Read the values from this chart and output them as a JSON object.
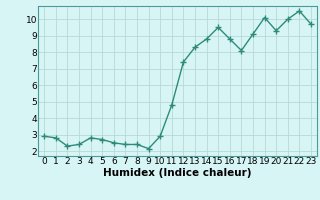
{
  "x": [
    0,
    1,
    2,
    3,
    4,
    5,
    6,
    7,
    8,
    9,
    10,
    11,
    12,
    13,
    14,
    15,
    16,
    17,
    18,
    19,
    20,
    21,
    22,
    23
  ],
  "y": [
    2.9,
    2.8,
    2.3,
    2.4,
    2.8,
    2.7,
    2.5,
    2.4,
    2.4,
    2.15,
    2.9,
    4.8,
    7.4,
    8.3,
    8.8,
    9.5,
    8.8,
    8.1,
    9.1,
    10.1,
    9.3,
    10.0,
    10.5,
    9.7
  ],
  "line_color": "#2e8b7a",
  "marker": "+",
  "bg_color": "#d8f5f5",
  "grid_color": "#b8d8d8",
  "xlabel": "Humidex (Indice chaleur)",
  "xlim": [
    -0.5,
    23.5
  ],
  "ylim": [
    1.7,
    10.8
  ],
  "yticks": [
    2,
    3,
    4,
    5,
    6,
    7,
    8,
    9,
    10
  ],
  "xticks": [
    0,
    1,
    2,
    3,
    4,
    5,
    6,
    7,
    8,
    9,
    10,
    11,
    12,
    13,
    14,
    15,
    16,
    17,
    18,
    19,
    20,
    21,
    22,
    23
  ],
  "xlabel_fontsize": 7.5,
  "tick_fontsize": 6.5,
  "linewidth": 1.0,
  "markersize": 4,
  "markeredgewidth": 1.0
}
